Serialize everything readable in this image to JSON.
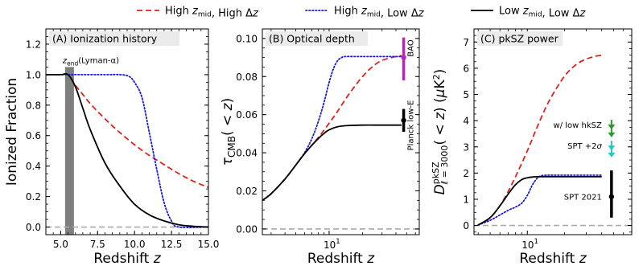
{
  "legend": {
    "placement": "top-center",
    "entries": [
      {
        "label": "High z_mid, High Δz",
        "color": "#e0201b",
        "dash": "dashed"
      },
      {
        "label": "High z_mid, Low Δz",
        "color": "#1b1bd6",
        "dash": "dotted"
      },
      {
        "label": "Low z_mid, Low Δz",
        "color": "#000000",
        "dash": "solid"
      }
    ]
  },
  "chart_data": [
    {
      "type": "line",
      "title": "(A) Ionization history",
      "xlabel": "Redshift z",
      "ylabel": "Ionized Fraction",
      "xlim": [
        4,
        15
      ],
      "ylim": [
        -0.05,
        1.3
      ],
      "xscale": "linear",
      "xticks": [
        "5.0",
        "7.5",
        "10.0",
        "12.5",
        "15.0"
      ],
      "yticks": [
        "0.0",
        "0.2",
        "0.4",
        "0.6",
        "0.8",
        "1.0",
        "1.2"
      ],
      "grid": false,
      "annotations": [
        {
          "text": "z_end(Lyman-α)",
          "kind": "shaded-band",
          "x_range": [
            5.3,
            5.9
          ],
          "color": "#7f7f7f"
        }
      ],
      "reference_line": {
        "y": 0,
        "color": "#aaaaaa",
        "dash": "dashed"
      },
      "series": [
        {
          "name": "High z_mid, High Δz",
          "color": "#e0201b",
          "dash": "dashed",
          "x": [
            4.0,
            5.0,
            5.5,
            6.0,
            6.5,
            7.0,
            8.0,
            9.0,
            10.0,
            11.0,
            12.0,
            13.0,
            14.0,
            15.0
          ],
          "y": [
            1.0,
            1.0,
            1.0,
            0.93,
            0.87,
            0.81,
            0.71,
            0.62,
            0.54,
            0.47,
            0.41,
            0.35,
            0.3,
            0.26
          ]
        },
        {
          "name": "High z_mid, Low Δz",
          "color": "#1b1bd6",
          "dash": "dotted",
          "x": [
            4.0,
            5.0,
            6.0,
            8.0,
            9.0,
            9.6,
            10.0,
            10.5,
            11.0,
            11.5,
            12.0,
            12.5,
            13.0,
            15.0
          ],
          "y": [
            1.0,
            1.0,
            1.0,
            1.0,
            1.0,
            0.99,
            0.95,
            0.85,
            0.62,
            0.38,
            0.16,
            0.04,
            0.0,
            0.0
          ]
        },
        {
          "name": "Low z_mid, Low Δz",
          "color": "#000000",
          "dash": "solid",
          "x": [
            4.0,
            5.0,
            5.5,
            6.0,
            6.5,
            7.0,
            8.0,
            9.0,
            10.0,
            11.0,
            12.0,
            13.0,
            14.0,
            15.0
          ],
          "y": [
            1.0,
            1.0,
            1.0,
            0.92,
            0.78,
            0.64,
            0.42,
            0.27,
            0.15,
            0.08,
            0.04,
            0.015,
            0.005,
            0.0
          ]
        }
      ]
    },
    {
      "type": "line",
      "title": "(B) Optical depth",
      "xlabel": "Redshift z",
      "ylabel": "τ_CMB(<z)",
      "xlim": [
        2.5,
        65
      ],
      "ylim": [
        -0.003,
        0.105
      ],
      "xscale": "log",
      "xticks": [
        "10^1"
      ],
      "yticks": [
        "0.00",
        "0.02",
        "0.04",
        "0.06",
        "0.08",
        "0.10"
      ],
      "grid": false,
      "reference_line": {
        "y": 0,
        "color": "#aaaaaa",
        "dash": "dashed"
      },
      "series": [
        {
          "name": "High z_mid, High Δz",
          "color": "#e0201b",
          "dash": "dashed",
          "x": [
            2.5,
            3,
            4,
            5,
            6,
            7,
            8,
            10,
            12,
            15,
            20,
            25,
            30,
            40,
            45
          ],
          "y": [
            0.015,
            0.0185,
            0.0262,
            0.0335,
            0.0395,
            0.044,
            0.048,
            0.0555,
            0.062,
            0.0705,
            0.08,
            0.0855,
            0.0885,
            0.0905,
            0.091
          ]
        },
        {
          "name": "High z_mid, Low Δz",
          "color": "#1b1bd6",
          "dash": "dotted",
          "x": [
            2.5,
            3,
            4,
            5,
            6,
            7,
            8,
            9,
            10,
            11,
            12,
            13,
            14,
            20,
            45
          ],
          "y": [
            0.015,
            0.0185,
            0.0262,
            0.0335,
            0.04,
            0.0475,
            0.0565,
            0.0665,
            0.077,
            0.0845,
            0.0885,
            0.09,
            0.0905,
            0.0905,
            0.0905
          ]
        },
        {
          "name": "Low z_mid, Low Δz",
          "color": "#000000",
          "dash": "solid",
          "x": [
            2.5,
            3,
            4,
            5,
            6,
            7,
            8,
            9,
            10,
            12,
            15,
            20,
            30,
            45
          ],
          "y": [
            0.015,
            0.0185,
            0.0262,
            0.0335,
            0.0395,
            0.044,
            0.0475,
            0.0502,
            0.052,
            0.0537,
            0.0543,
            0.0545,
            0.0545,
            0.0545
          ]
        }
      ],
      "error_bars": [
        {
          "label": "BAO",
          "color": "#b428b4",
          "x": 47,
          "y": 0.09,
          "ylow": 0.078,
          "yhigh": 0.1005
        },
        {
          "label": "Planck low-E",
          "color": "#000000",
          "x": 47,
          "y": 0.057,
          "ylow": 0.051,
          "yhigh": 0.063
        }
      ]
    },
    {
      "type": "line",
      "title": "(C) pkSZ power",
      "xlabel": "Redshift z",
      "ylabel": "D^pkSZ_ℓ=3000(<z) (μK²)",
      "xlim": [
        3.7,
        70
      ],
      "ylim": [
        -0.35,
        7.5
      ],
      "xscale": "log",
      "xticks": [
        "10^1"
      ],
      "yticks": [
        "0",
        "1",
        "2",
        "3",
        "4",
        "5",
        "6",
        "7"
      ],
      "grid": false,
      "reference_line": {
        "y": 0,
        "color": "#aaaaaa",
        "dash": "dashed"
      },
      "series": [
        {
          "name": "High z_mid, High Δz",
          "color": "#e0201b",
          "dash": "dashed",
          "x": [
            4,
            5,
            6,
            7,
            8,
            10,
            12,
            15,
            20,
            25,
            30,
            35,
            40
          ],
          "y": [
            0.02,
            0.3,
            0.75,
            1.3,
            1.85,
            2.85,
            3.75,
            4.75,
            5.7,
            6.15,
            6.35,
            6.45,
            6.5
          ]
        },
        {
          "name": "High z_mid, Low Δz",
          "color": "#1b1bd6",
          "dash": "dotted",
          "x": [
            4,
            5,
            6,
            7,
            8,
            9,
            10,
            11,
            12,
            13,
            15,
            20,
            40
          ],
          "y": [
            0.02,
            0.2,
            0.4,
            0.58,
            0.7,
            0.85,
            1.15,
            1.55,
            1.8,
            1.9,
            1.92,
            1.92,
            1.92
          ]
        },
        {
          "name": "Low z_mid, Low Δz",
          "color": "#000000",
          "dash": "solid",
          "x": [
            4,
            5,
            6,
            7,
            8,
            9,
            10,
            11,
            12,
            15,
            20,
            40
          ],
          "y": [
            0.02,
            0.3,
            0.75,
            1.2,
            1.55,
            1.75,
            1.82,
            1.85,
            1.86,
            1.86,
            1.86,
            1.86
          ]
        }
      ],
      "constraints": [
        {
          "label": "w/ low hkSZ",
          "color": "#2a9a2a",
          "kind": "upper-limit-arrows",
          "x": 48,
          "y": [
            3.85,
            3.55
          ]
        },
        {
          "label": "SPT +2σ",
          "color": "#22c7c7",
          "kind": "upper-limit-arrows",
          "x": 48,
          "y": [
            3.05,
            2.78
          ]
        },
        {
          "label": "SPT 2021",
          "color": "#000000",
          "kind": "error-bar",
          "x": 48,
          "y": 1.1,
          "ylow": 0.3,
          "yhigh": 2.1
        }
      ]
    }
  ]
}
